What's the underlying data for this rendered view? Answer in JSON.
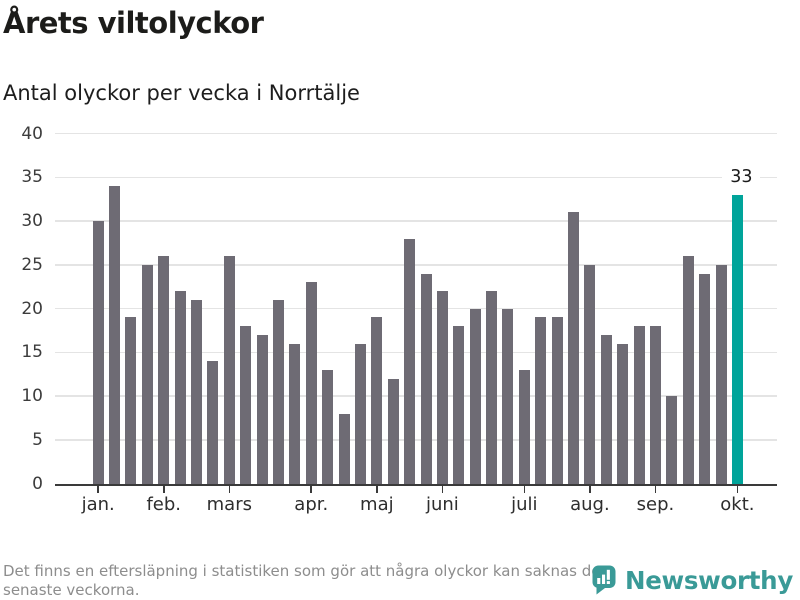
{
  "header": {
    "title": "Årets viltolyckor",
    "subtitle": "Antal olyckor per vecka i Norrtälje"
  },
  "chart_data": {
    "type": "bar",
    "title": "Årets viltolyckor",
    "subtitle": "Antal olyckor per vecka i Norrtälje",
    "xlabel": "",
    "ylabel": "",
    "ylim": [
      0,
      40
    ],
    "yticks": [
      0,
      5,
      10,
      15,
      20,
      25,
      30,
      35,
      40
    ],
    "grid": true,
    "values": [
      30,
      34,
      19,
      25,
      26,
      22,
      21,
      14,
      26,
      18,
      17,
      21,
      16,
      23,
      13,
      8,
      16,
      19,
      12,
      28,
      24,
      22,
      18,
      20,
      22,
      20,
      13,
      19,
      19,
      31,
      25,
      17,
      16,
      18,
      18,
      10,
      26,
      24,
      25,
      33
    ],
    "bar_color": "#6e6b74",
    "highlight_index": 39,
    "highlight_color": "#00a49a",
    "highlight_label": "33",
    "x_ticks": [
      {
        "label": "jan.",
        "index": 0
      },
      {
        "label": "feb.",
        "index": 4
      },
      {
        "label": "mars",
        "index": 8
      },
      {
        "label": "apr.",
        "index": 13
      },
      {
        "label": "maj",
        "index": 17
      },
      {
        "label": "juni",
        "index": 21
      },
      {
        "label": "juli",
        "index": 26
      },
      {
        "label": "aug.",
        "index": 30
      },
      {
        "label": "sep.",
        "index": 34
      },
      {
        "label": "okt.",
        "index": 39
      }
    ],
    "gridline_color": "#e4e4e4",
    "axis_color": "#3a3a3a"
  },
  "footer": {
    "note_lines": [
      "Det finns en eftersläpning i statistiken som gör att några olyckor kan saknas de",
      "senaste veckorna."
    ],
    "brand": "Newsworthy",
    "brand_color": "#3a9a97"
  }
}
